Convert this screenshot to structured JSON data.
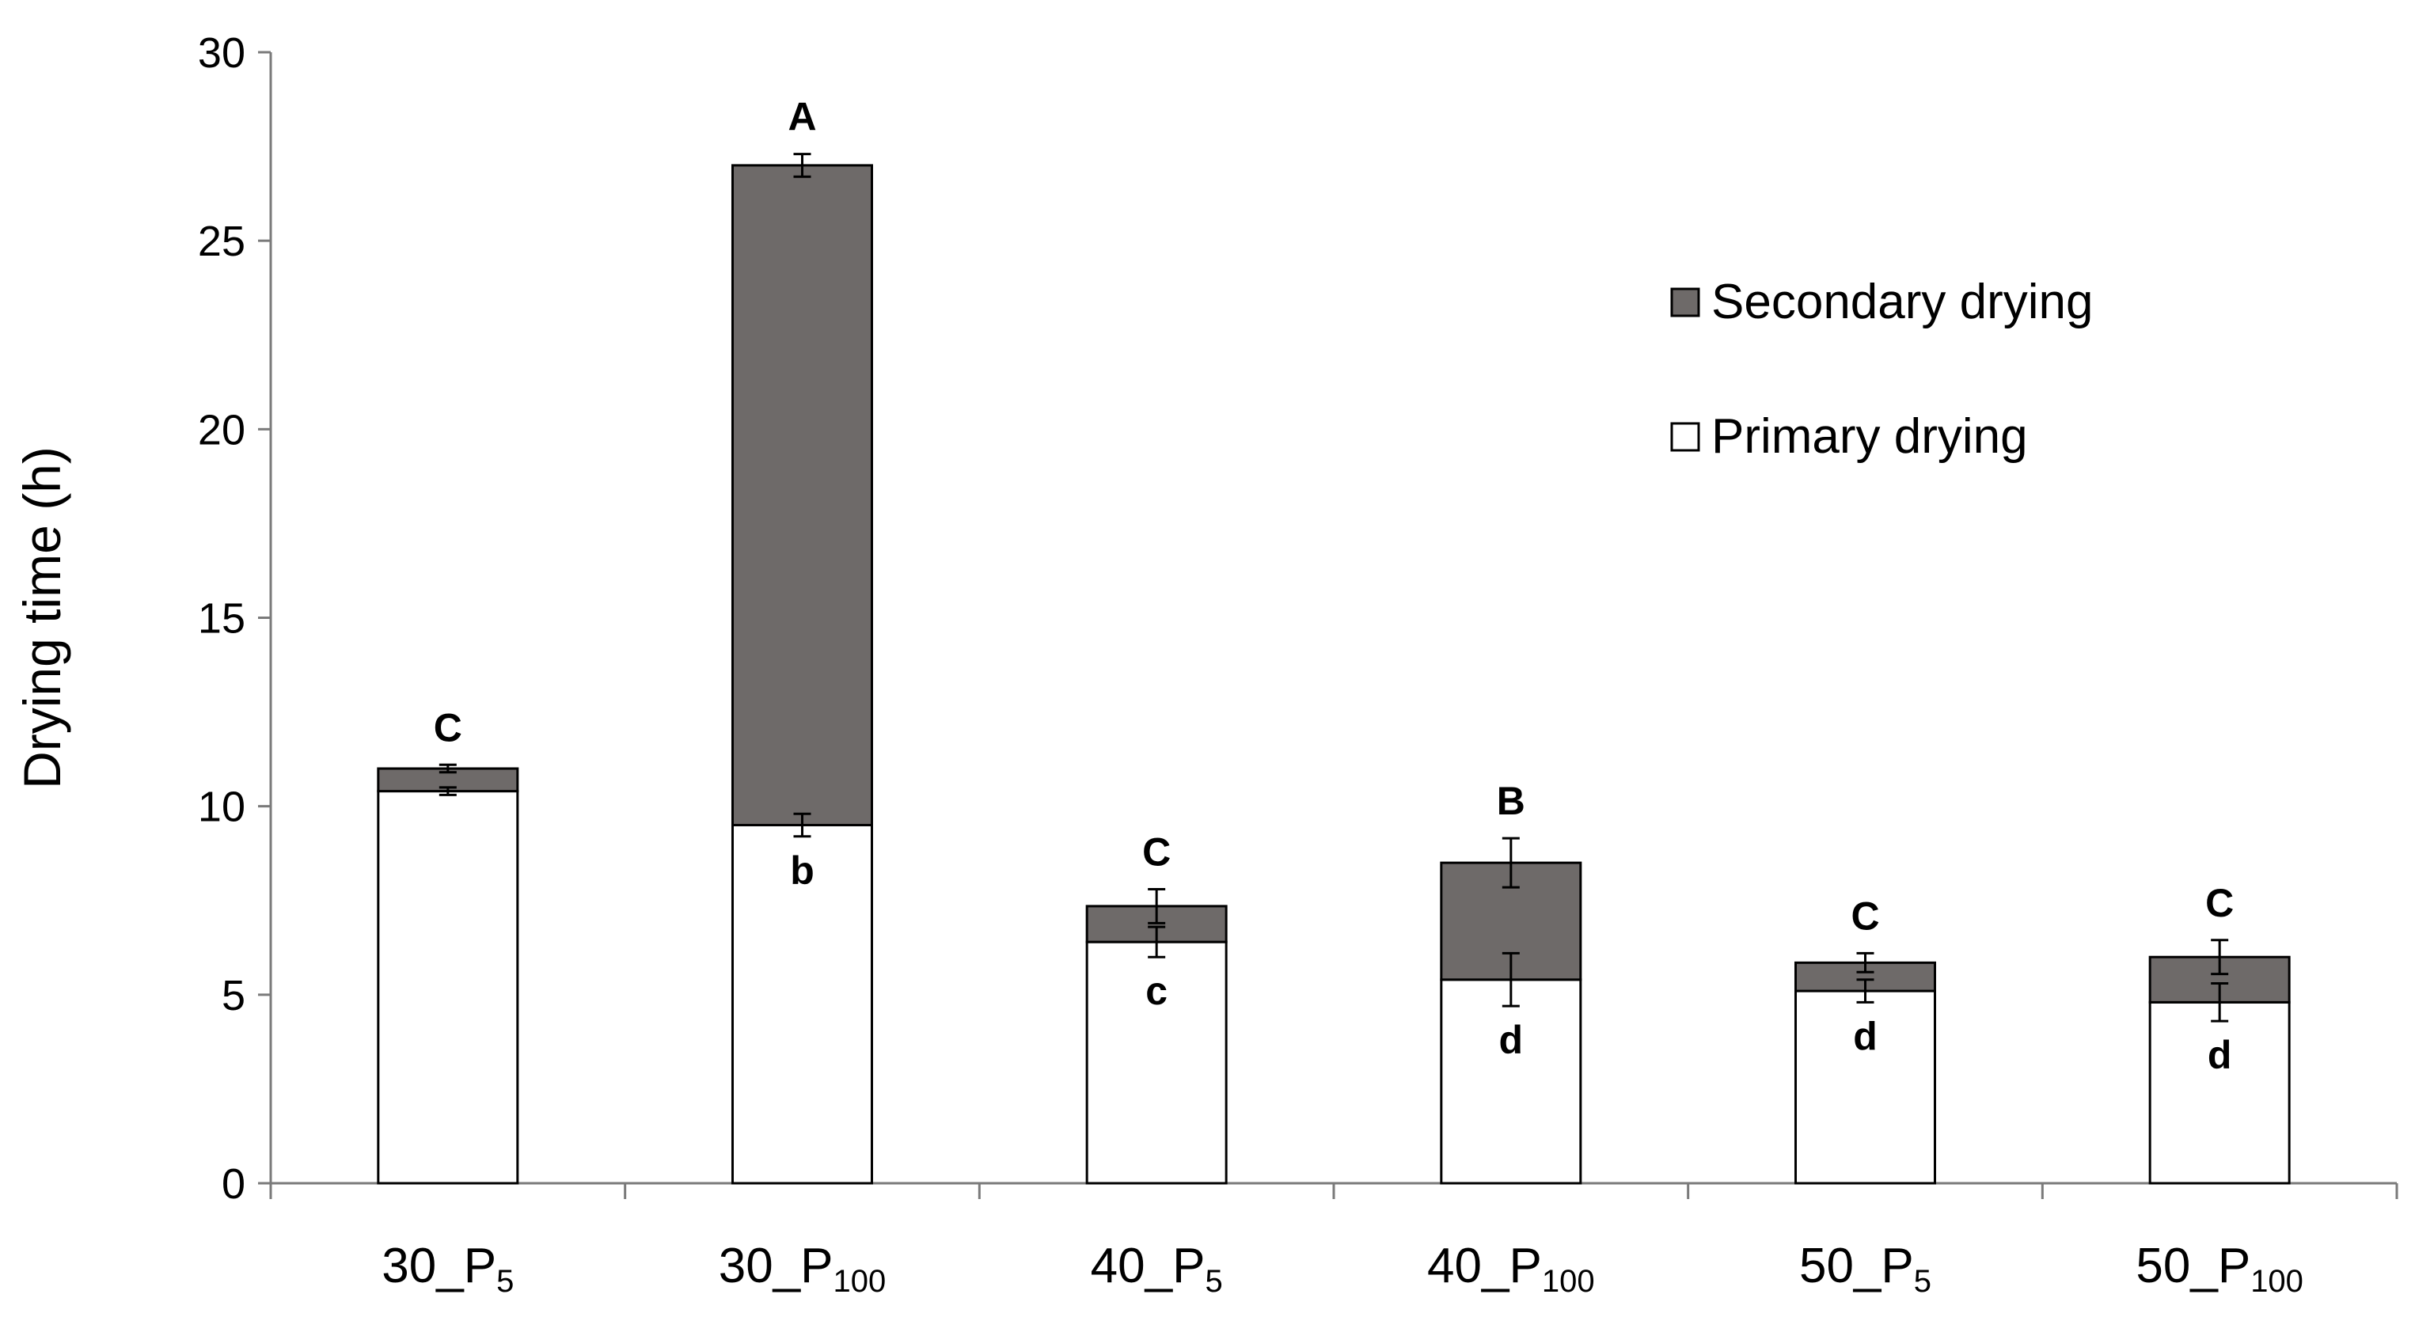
{
  "chart_data": {
    "type": "bar",
    "stacked": true,
    "categories": [
      {
        "main": "30_P",
        "sub": "5"
      },
      {
        "main": "30_P",
        "sub": "100"
      },
      {
        "main": "40_P",
        "sub": "5"
      },
      {
        "main": "40_P",
        "sub": "100"
      },
      {
        "main": "50_P",
        "sub": "5"
      },
      {
        "main": "50_P",
        "sub": "100"
      }
    ],
    "series": [
      {
        "name": "Primary drying",
        "color": "#ffffff",
        "values": [
          10.4,
          9.5,
          6.4,
          5.4,
          5.1,
          4.8
        ],
        "errors": [
          0.1,
          0.3,
          0.4,
          0.7,
          0.3,
          0.5
        ],
        "letters": [
          "",
          "b",
          "c",
          "d",
          "d",
          "d"
        ]
      },
      {
        "name": "Secondary drying",
        "color": "#6e6a69",
        "values": [
          0.6,
          17.5,
          0.95,
          3.1,
          0.75,
          1.2
        ],
        "errors": [
          0.1,
          0.3,
          0.45,
          0.65,
          0.25,
          0.45
        ],
        "letters": [
          "C",
          "A",
          "C",
          "B",
          "C",
          "C"
        ]
      }
    ],
    "ylabel": "Drying time (h)",
    "ylim": [
      0,
      30
    ],
    "yticks": [
      "0",
      "5",
      "10",
      "15",
      "20",
      "25",
      "30"
    ],
    "legend": {
      "placement": "top-right",
      "entries": [
        "Secondary drying",
        "Primary drying"
      ]
    },
    "grid": false
  }
}
